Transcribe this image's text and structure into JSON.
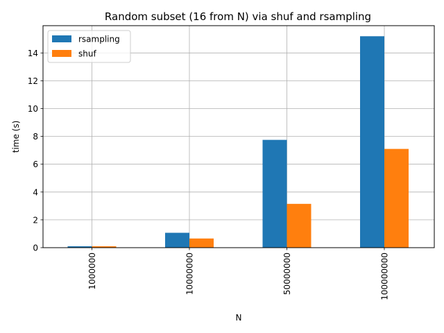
{
  "chart_data": {
    "type": "bar",
    "title": "Random subset (16 from N) via shuf and rsampling",
    "xlabel": "N",
    "ylabel": "time (s)",
    "categories": [
      "1000000",
      "10000000",
      "50000000",
      "100000000"
    ],
    "series": [
      {
        "name": "rsampling",
        "values": [
          0.1,
          1.07,
          7.75,
          15.2
        ],
        "color": "#1f77b4"
      },
      {
        "name": "shuf",
        "values": [
          0.1,
          0.66,
          3.15,
          7.1
        ],
        "color": "#ff7f0e"
      }
    ],
    "ylim": [
      0,
      15.96
    ],
    "yticks": [
      0,
      2,
      4,
      6,
      8,
      10,
      12,
      14
    ],
    "grid": true,
    "legend_position": "top-left"
  }
}
